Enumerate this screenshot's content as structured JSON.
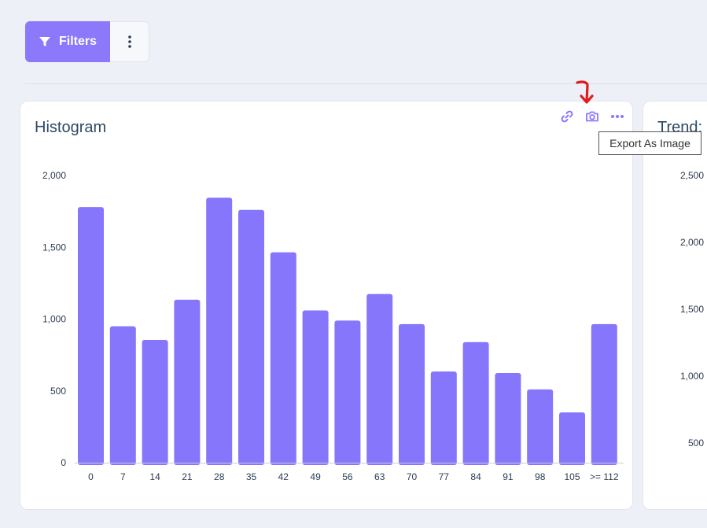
{
  "toolbar": {
    "filters_label": "Filters"
  },
  "histogram_card": {
    "title": "Histogram",
    "actions": [
      "link-icon",
      "camera-icon",
      "more-horizontal-icon"
    ],
    "tooltip": "Export As Image"
  },
  "trend_card": {
    "title": "Trend:",
    "ytick_labels": [
      "2,500",
      "2,000",
      "1,500",
      "1,000",
      "500"
    ]
  },
  "colors": {
    "accent": "#8b78fb",
    "bar": "#8576fb",
    "arrow": "#e11b1b"
  },
  "chart_data": {
    "type": "bar",
    "categories": [
      "0",
      "7",
      "14",
      "21",
      "28",
      "35",
      "42",
      "49",
      "56",
      "63",
      "70",
      "77",
      "84",
      "91",
      "98",
      "105",
      ">= 112"
    ],
    "values": [
      1780,
      950,
      855,
      1135,
      1845,
      1760,
      1465,
      1060,
      990,
      1175,
      965,
      635,
      840,
      625,
      510,
      350,
      965
    ],
    "title": "Histogram",
    "ylim": [
      0,
      2000
    ],
    "yticks": [
      0,
      500,
      1000,
      1500,
      2000
    ],
    "ytick_labels": [
      "0",
      "500",
      "1,000",
      "1,500",
      "2,000"
    ],
    "grid": false
  }
}
